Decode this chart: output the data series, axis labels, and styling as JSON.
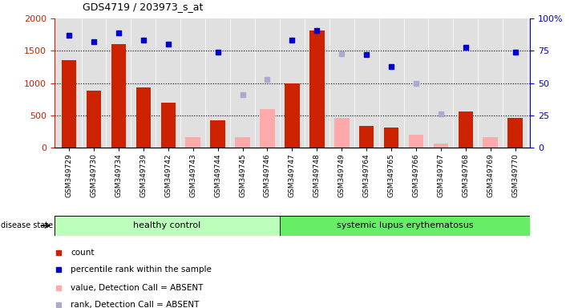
{
  "title": "GDS4719 / 203973_s_at",
  "samples": [
    "GSM349729",
    "GSM349730",
    "GSM349734",
    "GSM349739",
    "GSM349742",
    "GSM349743",
    "GSM349744",
    "GSM349745",
    "GSM349746",
    "GSM349747",
    "GSM349748",
    "GSM349749",
    "GSM349764",
    "GSM349765",
    "GSM349766",
    "GSM349767",
    "GSM349768",
    "GSM349769",
    "GSM349770"
  ],
  "count_present": [
    1350,
    880,
    1600,
    940,
    700,
    null,
    420,
    null,
    null,
    1000,
    1820,
    null,
    340,
    310,
    null,
    null,
    560,
    null,
    460
  ],
  "count_absent": [
    null,
    null,
    null,
    null,
    null,
    160,
    null,
    160,
    600,
    null,
    null,
    460,
    null,
    null,
    200,
    60,
    null,
    160,
    null
  ],
  "percentile_present": [
    87,
    82,
    89,
    83,
    80,
    null,
    74,
    null,
    null,
    83,
    91,
    null,
    72,
    63,
    null,
    null,
    78,
    null,
    74
  ],
  "percentile_absent": [
    null,
    null,
    null,
    null,
    null,
    null,
    null,
    41,
    53,
    null,
    null,
    73,
    null,
    null,
    50,
    26,
    null,
    null,
    null
  ],
  "ylim_left": [
    0,
    2000
  ],
  "ylim_right": [
    0,
    100
  ],
  "yticks_left": [
    0,
    500,
    1000,
    1500,
    2000
  ],
  "yticks_right": [
    0,
    25,
    50,
    75,
    100
  ],
  "group1_label": "healthy control",
  "group2_label": "systemic lupus erythematosus",
  "n_group1": 9,
  "n_group2": 10,
  "bar_color_present": "#cc2200",
  "bar_color_absent": "#ffaaaa",
  "dot_color_present": "#0000cc",
  "dot_color_absent": "#aaaacc",
  "group1_color": "#bbffbb",
  "group2_color": "#66ee66",
  "plot_bg_color": "#e0e0e0",
  "disease_state_label": "disease state",
  "legend_items": [
    {
      "label": "count",
      "color": "#cc2200"
    },
    {
      "label": "percentile rank within the sample",
      "color": "#0000cc"
    },
    {
      "label": "value, Detection Call = ABSENT",
      "color": "#ffaaaa"
    },
    {
      "label": "rank, Detection Call = ABSENT",
      "color": "#aaaacc"
    }
  ]
}
